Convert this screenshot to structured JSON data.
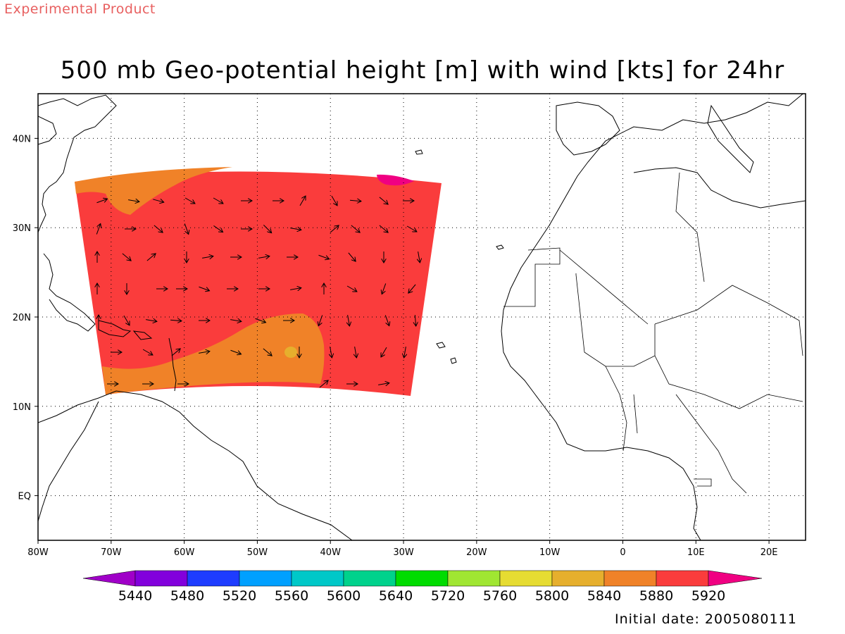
{
  "header": {
    "product_label": "Experimental Product",
    "title": "500 mb Geo-potential height [m] with wind [kts] for 24hr",
    "initial_date": "Initial date: 2005080111"
  },
  "map": {
    "lon_range": [
      -80,
      25
    ],
    "lat_range": [
      -5,
      45
    ],
    "lon_ticks": [
      "80W",
      "70W",
      "60W",
      "50W",
      "40W",
      "30W",
      "20W",
      "10W",
      "0",
      "10E",
      "20E"
    ],
    "lat_ticks": [
      "40N",
      "30N",
      "20N",
      "10N",
      "EQ"
    ],
    "lat_tick_values": [
      40,
      30,
      20,
      10,
      0
    ],
    "lon_tick_values": [
      -80,
      -70,
      -60,
      -50,
      -40,
      -30,
      -20,
      -10,
      0,
      10,
      20
    ],
    "grid": "dotted",
    "domain_fill_color": "#fa3c3c"
  },
  "colorbar": {
    "levels": [
      "5440",
      "5480",
      "5520",
      "5560",
      "5600",
      "5640",
      "5720",
      "5760",
      "5800",
      "5840",
      "5880",
      "5920"
    ],
    "colors": [
      "#a000c8",
      "#8200dc",
      "#1e3cff",
      "#00a0ff",
      "#00c8c8",
      "#00d28c",
      "#00dc00",
      "#a0e632",
      "#e6dc32",
      "#e6af2d",
      "#f08228",
      "#fa3c3c",
      "#f00082"
    ]
  }
}
